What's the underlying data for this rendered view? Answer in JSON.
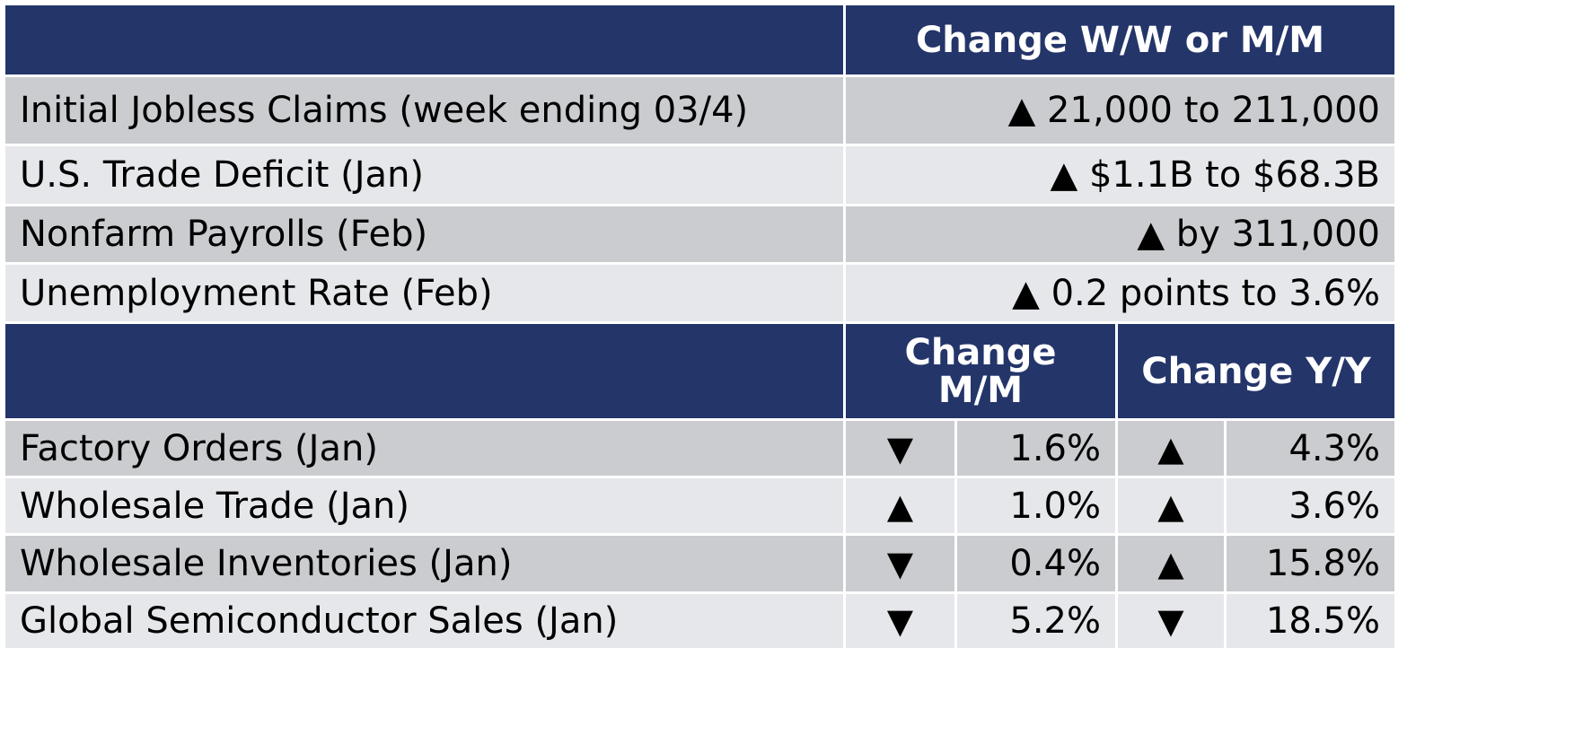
{
  "header1": {
    "left": "",
    "change": "Change W/W or M/M"
  },
  "rows1": [
    {
      "label": "Initial Jobless Claims (week ending 03/4)",
      "value": "▲ 21,000 to 211,000"
    },
    {
      "label": "U.S. Trade Deficit (Jan)",
      "value": "▲ $1.1B to $68.3B"
    },
    {
      "label": "Nonfarm Payrolls (Feb)",
      "value": "▲ by 311,000"
    },
    {
      "label": "Unemployment Rate (Feb)",
      "value": "▲ 0.2 points to 3.6%"
    }
  ],
  "header2": {
    "left": "",
    "mm": "Change M/M",
    "yy": "Change Y/Y"
  },
  "rows2": [
    {
      "label": "Factory Orders (Jan)",
      "mm_arrow": "▼",
      "mm": "1.6%",
      "yy_arrow": "▲",
      "yy": "4.3%"
    },
    {
      "label": "Wholesale Trade (Jan)",
      "mm_arrow": "▲",
      "mm": "1.0%",
      "yy_arrow": "▲",
      "yy": "3.6%"
    },
    {
      "label": "Wholesale Inventories (Jan)",
      "mm_arrow": "▼",
      "mm": "0.4%",
      "yy_arrow": "▲",
      "yy": "15.8%"
    },
    {
      "label": "Global Semiconductor Sales (Jan)",
      "mm_arrow": "▼",
      "mm": "5.2%",
      "yy_arrow": "▼",
      "yy": "18.5%"
    }
  ],
  "colors": {
    "header": "#24356a",
    "row_dark": "#cbccd0",
    "row_light": "#e6e7ea"
  }
}
